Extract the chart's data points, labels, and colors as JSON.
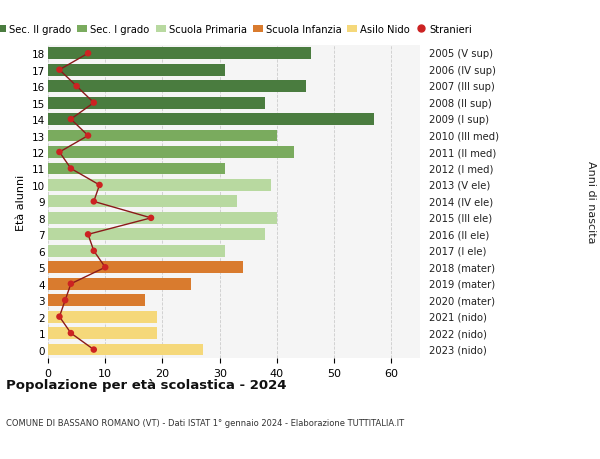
{
  "ages": [
    18,
    17,
    16,
    15,
    14,
    13,
    12,
    11,
    10,
    9,
    8,
    7,
    6,
    5,
    4,
    3,
    2,
    1,
    0
  ],
  "years_labels": [
    "2005 (V sup)",
    "2006 (IV sup)",
    "2007 (III sup)",
    "2008 (II sup)",
    "2009 (I sup)",
    "2010 (III med)",
    "2011 (II med)",
    "2012 (I med)",
    "2013 (V ele)",
    "2014 (IV ele)",
    "2015 (III ele)",
    "2016 (II ele)",
    "2017 (I ele)",
    "2018 (mater)",
    "2019 (mater)",
    "2020 (mater)",
    "2021 (nido)",
    "2022 (nido)",
    "2023 (nido)"
  ],
  "bar_values": [
    46,
    31,
    45,
    38,
    57,
    40,
    43,
    31,
    39,
    33,
    40,
    38,
    31,
    34,
    25,
    17,
    19,
    19,
    27
  ],
  "stranieri": [
    7,
    2,
    5,
    8,
    4,
    7,
    2,
    4,
    9,
    8,
    18,
    7,
    8,
    10,
    4,
    3,
    2,
    4,
    8
  ],
  "bar_colors": [
    "#4a7c3f",
    "#4a7c3f",
    "#4a7c3f",
    "#4a7c3f",
    "#4a7c3f",
    "#7aab5e",
    "#7aab5e",
    "#7aab5e",
    "#b8d9a0",
    "#b8d9a0",
    "#b8d9a0",
    "#b8d9a0",
    "#b8d9a0",
    "#d97b2e",
    "#d97b2e",
    "#d97b2e",
    "#f5d87a",
    "#f5d87a",
    "#f5d87a"
  ],
  "legend_labels": [
    "Sec. II grado",
    "Sec. I grado",
    "Scuola Primaria",
    "Scuola Infanzia",
    "Asilo Nido",
    "Stranieri"
  ],
  "legend_colors": [
    "#4a7c3f",
    "#7aab5e",
    "#b8d9a0",
    "#d97b2e",
    "#f5d87a",
    "#cc2222"
  ],
  "title": "Popolazione per età scolastica - 2024",
  "subtitle": "COMUNE DI BASSANO ROMANO (VT) - Dati ISTAT 1° gennaio 2024 - Elaborazione TUTTITALIA.IT",
  "ylabel_left": "Età alunni",
  "ylabel_right": "Anni di nascita",
  "xlim": [
    0,
    65
  ],
  "background_color": "#ffffff",
  "grid_color": "#cccccc",
  "stranieri_line_color": "#8b1a1a",
  "stranieri_dot_color": "#cc2222",
  "bar_height": 0.72
}
